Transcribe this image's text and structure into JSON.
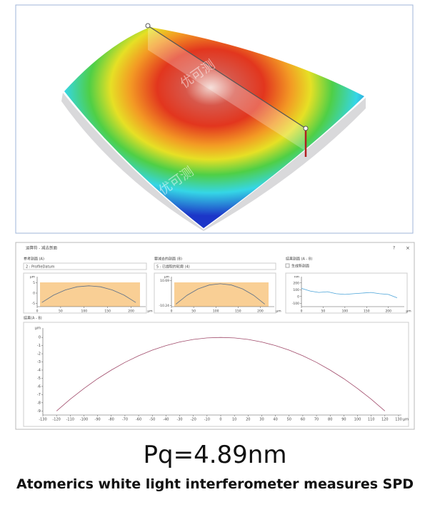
{
  "watermarks": [
    "优可测",
    "优可测",
    "优可测"
  ],
  "window": {
    "title": "运算符 - 减去剖面",
    "close": "×",
    "help": "?",
    "label_a": "参考剖面 (A)",
    "select_a": "2 : ProfileDatum",
    "label_b": "要减去的剖面 (B)",
    "select_b": "5 : 已提取的轮廓 (4)",
    "label_c": "结果剖面 (A - B)",
    "checkbox_c": "生成新剖面",
    "label_result": "结果(A - B)"
  },
  "chart_data": [
    {
      "type": "line",
      "x_unit": "µm",
      "y_unit": "µm",
      "color": "#5a6f8a",
      "x": [
        10,
        35,
        60,
        85,
        110,
        135,
        160,
        185,
        210
      ],
      "values": [
        -4.5,
        -1,
        1.5,
        3,
        3.5,
        3,
        1.5,
        -1,
        -4.5
      ],
      "xlim": [
        0,
        225
      ],
      "ylim": [
        -6.5,
        6.5
      ],
      "xticks": [
        0,
        50,
        100,
        150,
        200
      ],
      "yticks": [
        -5,
        0,
        5
      ]
    },
    {
      "type": "line",
      "x_unit": "µm",
      "y_unit": "µm",
      "color": "#5a6f8a",
      "x": [
        10,
        35,
        60,
        85,
        110,
        135,
        160,
        185,
        210
      ],
      "values": [
        -9,
        -1.56,
        3.75,
        6.94,
        8,
        6.94,
        3.75,
        -1.56,
        -9
      ],
      "xlim": [
        0,
        225
      ],
      "ylim": [
        -11,
        11.5
      ],
      "xticks": [
        0,
        50,
        100,
        150,
        200
      ],
      "yticks": [
        -10.24,
        10.69
      ]
    },
    {
      "type": "line",
      "x_unit": "µm",
      "y_unit": "nm",
      "color": "#4aa3d8",
      "x": [
        0,
        20,
        40,
        60,
        80,
        100,
        120,
        140,
        160,
        180,
        200,
        220
      ],
      "values": [
        120,
        80,
        60,
        70,
        40,
        30,
        40,
        50,
        60,
        40,
        30,
        -20
      ],
      "xlim": [
        0,
        230
      ],
      "ylim": [
        -150,
        250
      ],
      "xticks": [
        0,
        50,
        100,
        150,
        200
      ],
      "yticks": [
        -100,
        0,
        100,
        200
      ]
    },
    {
      "type": "line",
      "x_unit": "µm",
      "y_unit": "µm",
      "color": "#a04a6a",
      "x": [
        -120,
        -110,
        -100,
        -90,
        -80,
        -70,
        -60,
        -50,
        -40,
        -30,
        -20,
        -10,
        0,
        10,
        20,
        30,
        40,
        50,
        60,
        70,
        80,
        90,
        100,
        110,
        120
      ],
      "values": [
        -9,
        -7.56,
        -6.25,
        -5.06,
        -4,
        -3.06,
        -2.25,
        -1.56,
        -1,
        -0.56,
        -0.25,
        -0.06,
        0,
        -0.06,
        -0.25,
        -0.56,
        -1,
        -1.56,
        -2.25,
        -3.06,
        -4,
        -5.06,
        -6.25,
        -7.56,
        -9
      ],
      "xlim": [
        -130,
        130
      ],
      "ylim": [
        -9.5,
        0.8
      ],
      "xticks": [
        -130,
        -120,
        -110,
        -100,
        -90,
        -80,
        -70,
        -60,
        -50,
        -40,
        -30,
        -20,
        -10,
        0,
        10,
        20,
        30,
        40,
        50,
        60,
        70,
        80,
        90,
        100,
        110,
        120,
        130
      ],
      "yticks": [
        0,
        -1,
        -2,
        -3,
        -4,
        -5,
        -6,
        -7,
        -8,
        -9
      ]
    }
  ],
  "caption": {
    "metric": "Pq=4.89nm",
    "description": "Atomerics white light interferometer measures SPD"
  }
}
